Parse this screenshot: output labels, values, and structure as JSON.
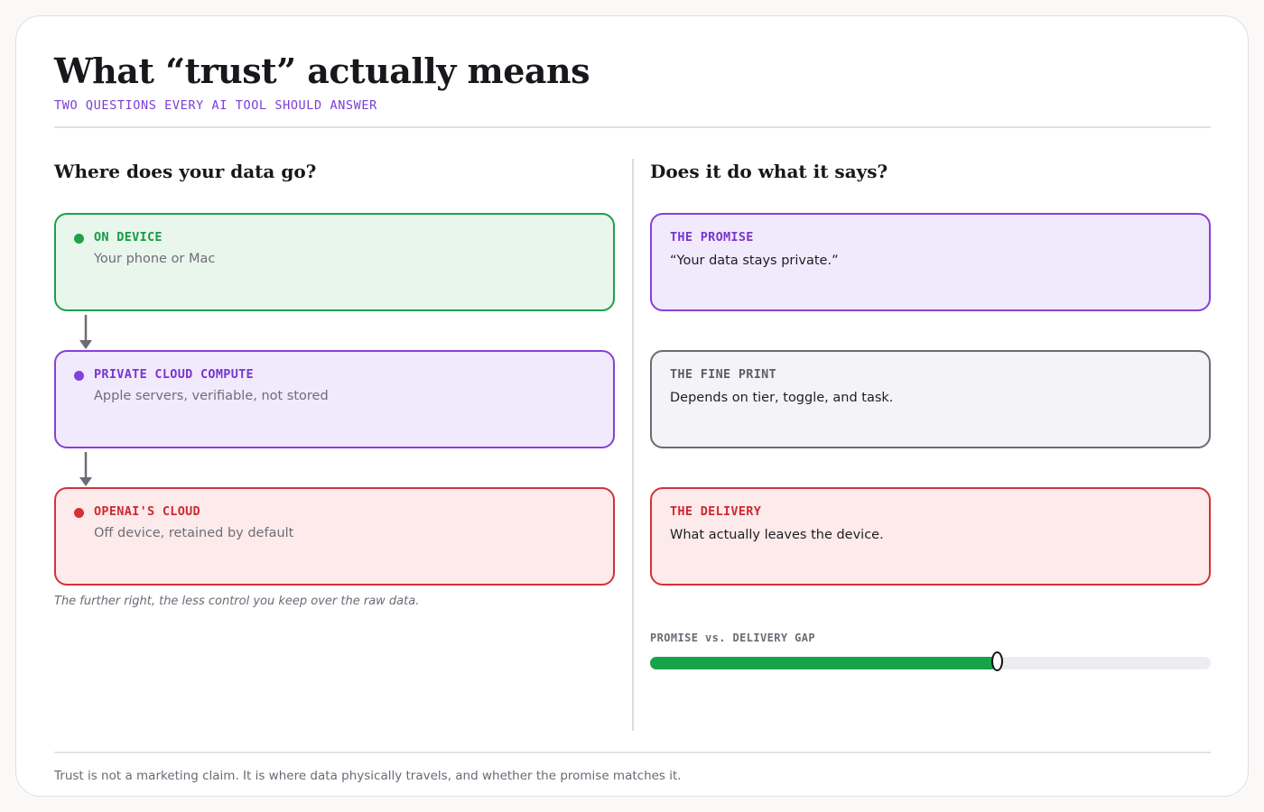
{
  "header": {
    "title": "What “trust” actually means",
    "subtitle": "TWO QUESTIONS EVERY AI TOOL SHOULD ANSWER"
  },
  "left_column": {
    "heading": "Where does your data go?",
    "items": [
      {
        "label": "ON DEVICE",
        "description": "Your phone or Mac",
        "color": "#1fa04a"
      },
      {
        "label": "PRIVATE CLOUD COMPUTE",
        "description": "Apple servers, verifiable, not stored",
        "color": "#8640d8"
      },
      {
        "label": "OPENAI'S CLOUD",
        "description": "Off device, retained by default",
        "color": "#d3323a"
      }
    ],
    "note": "The further right, the less control you keep over the raw data."
  },
  "right_column": {
    "heading": "Does it do what it says?",
    "items": [
      {
        "label": "THE PROMISE",
        "text": "“Your data stays private.”",
        "color": "#8640d8"
      },
      {
        "label": "THE FINE PRINT",
        "text": "Depends on tier, toggle, and task.",
        "color": "#6c6b75"
      },
      {
        "label": "THE DELIVERY",
        "text": "What actually leaves the device.",
        "color": "#d3323a"
      }
    ],
    "gap_meter": {
      "label": "PROMISE vs. DELIVERY GAP",
      "value": 0.62,
      "color": "#17a34a"
    }
  },
  "footer": {
    "text": "Trust is not a marketing claim. It is where data physically travels, and whether the promise matches it."
  }
}
